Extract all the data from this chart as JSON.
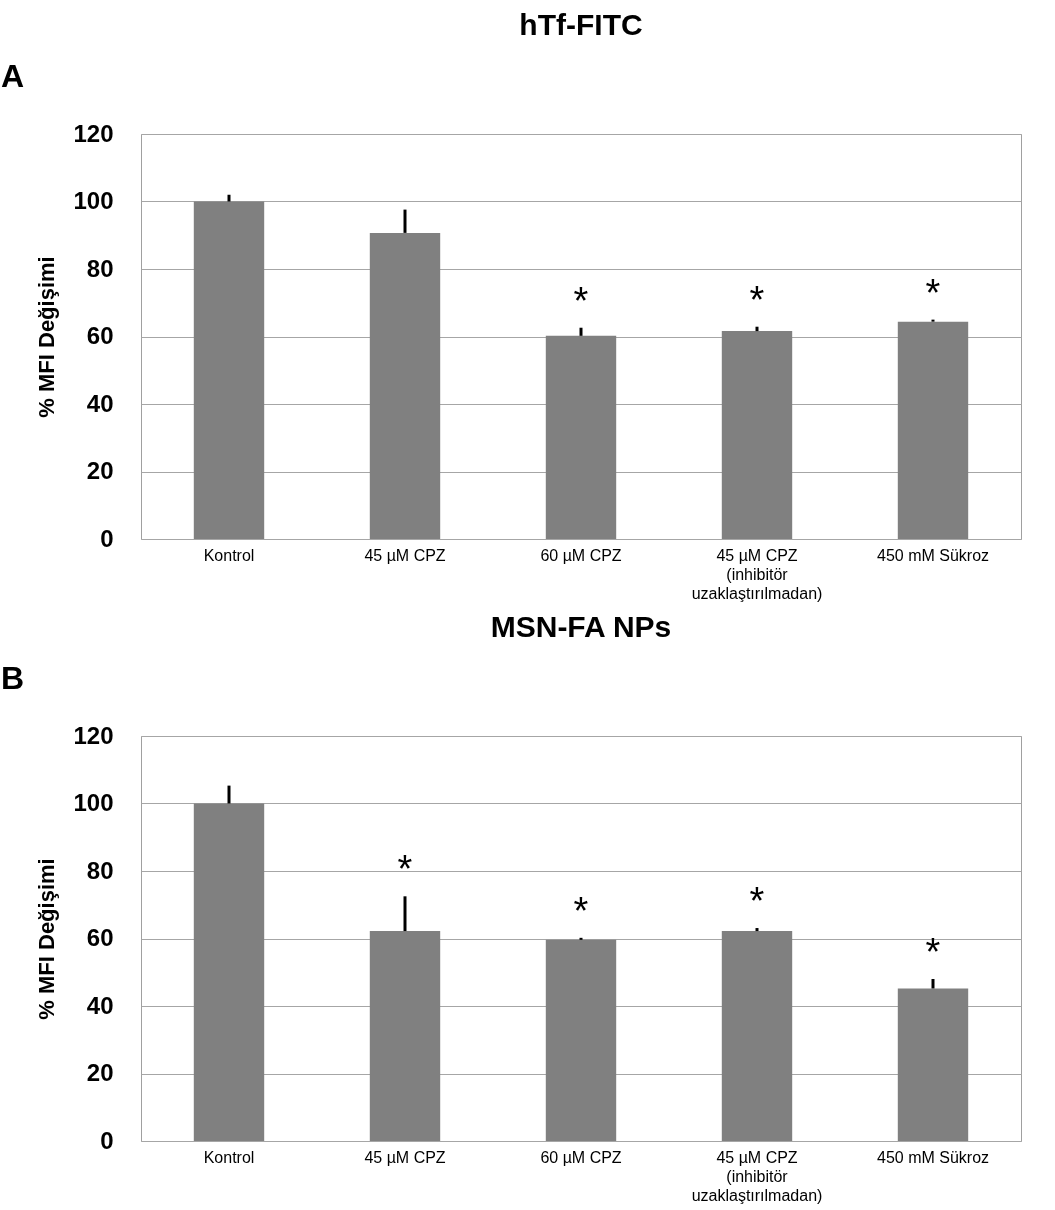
{
  "chart_data": [
    {
      "type": "bar",
      "title": "hTf-FITC",
      "ylabel": "% MFI Değişimi",
      "categories": [
        "Kontrol",
        "45 µM CPZ",
        "60 µM CPZ",
        "45 µM CPZ\n(inhibitör\nuzaklaştırılmadan)",
        "450 mM Sükroz"
      ],
      "values": [
        100,
        90.7,
        60.2,
        61.6,
        64.4
      ],
      "color": "#808080",
      "errors": [
        [
          100,
          102
        ],
        [
          90.7,
          97.6
        ],
        [
          60.2,
          62.6
        ],
        [
          61.6,
          62.9
        ],
        [
          64.4,
          65
        ]
      ],
      "ylim": [
        0,
        120
      ],
      "yticks": [
        0,
        20,
        40,
        60,
        80,
        100,
        120
      ],
      "grid": "y",
      "annotations": [
        "A",
        {
          "text": "*",
          "x": "60 µM CPZ",
          "y": 62.6
        },
        {
          "text": "*",
          "x": "45 µM CPZ\n(inhibitör\nuzaklaştırılmadan)",
          "y": 62.9
        },
        {
          "text": "*",
          "x": "450 mM Sükroz",
          "y": 65
        }
      ]
    },
    {
      "type": "bar",
      "title": "MSN-FA NPs",
      "ylabel": "% MFI Değişimi",
      "categories": [
        "Kontrol",
        "45 µM CPZ",
        "60 µM CPZ",
        "45 µM CPZ\n(inhibitör\nuzaklaştırılmadan)",
        "450 mM Sükroz"
      ],
      "values": [
        100,
        62.2,
        59.6,
        62.2,
        45.2
      ],
      "color": "#808080",
      "errors": [
        [
          100,
          105.3
        ],
        [
          62.2,
          72.5
        ],
        [
          59.6,
          60.2
        ],
        [
          62.2,
          63.1
        ],
        [
          45.2,
          48
        ]
      ],
      "ylim": [
        0,
        120
      ],
      "yticks": [
        0,
        20,
        40,
        60,
        80,
        100,
        120
      ],
      "grid": "y",
      "annotations": [
        "B",
        {
          "text": "*",
          "x": "45 µM CPZ",
          "y": 72.5
        },
        {
          "text": "*",
          "x": "60 µM CPZ",
          "y": 60.2
        },
        {
          "text": "*",
          "x": "45 µM CPZ\n(inhibitör\nuzaklaştırılmadan)",
          "y": 63.1
        },
        {
          "text": "*",
          "x": "450 mM Sükroz",
          "y": 48
        }
      ]
    }
  ]
}
